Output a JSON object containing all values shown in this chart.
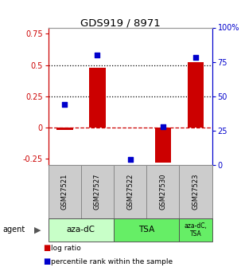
{
  "title": "GDS919 / 8971",
  "samples": [
    "GSM27521",
    "GSM27527",
    "GSM27522",
    "GSM27530",
    "GSM27523"
  ],
  "log_ratio": [
    -0.02,
    0.48,
    0.0,
    -0.28,
    0.52
  ],
  "percentile_rank": [
    44,
    80,
    4,
    28,
    78
  ],
  "agent_groups": [
    {
      "label": "aza-dC",
      "cols": [
        0,
        1
      ],
      "color": "#c8ffc8"
    },
    {
      "label": "TSA",
      "cols": [
        2,
        3
      ],
      "color": "#66ee66"
    },
    {
      "label": "aza-dC,\nTSA",
      "cols": [
        4,
        4
      ],
      "color": "#66ee66"
    }
  ],
  "ylim_left": [
    -0.3,
    0.8
  ],
  "ylim_right": [
    0,
    100
  ],
  "yticks_left": [
    -0.25,
    0.0,
    0.25,
    0.5,
    0.75
  ],
  "ytick_labels_left": [
    "-0.25",
    "0",
    "0.25",
    "0.5",
    "0.75"
  ],
  "yticks_right": [
    0,
    25,
    50,
    75,
    100
  ],
  "ytick_labels_right": [
    "0",
    "25",
    "50",
    "75",
    "100%"
  ],
  "hlines": [
    0.0,
    0.25,
    0.5
  ],
  "hline_styles": [
    "dashed",
    "dotted",
    "dotted"
  ],
  "hline_colors": [
    "#cc0000",
    "#000000",
    "#000000"
  ],
  "bar_color": "#cc0000",
  "dot_color": "#0000cc",
  "bar_width": 0.5,
  "legend_items": [
    {
      "color": "#cc0000",
      "label": "log ratio"
    },
    {
      "color": "#0000cc",
      "label": "percentile rank within the sample"
    }
  ],
  "agent_label": "agent",
  "background_color": "#ffffff",
  "sample_box_color": "#cccccc",
  "left_axis_color": "#cc0000",
  "right_axis_color": "#0000cc"
}
